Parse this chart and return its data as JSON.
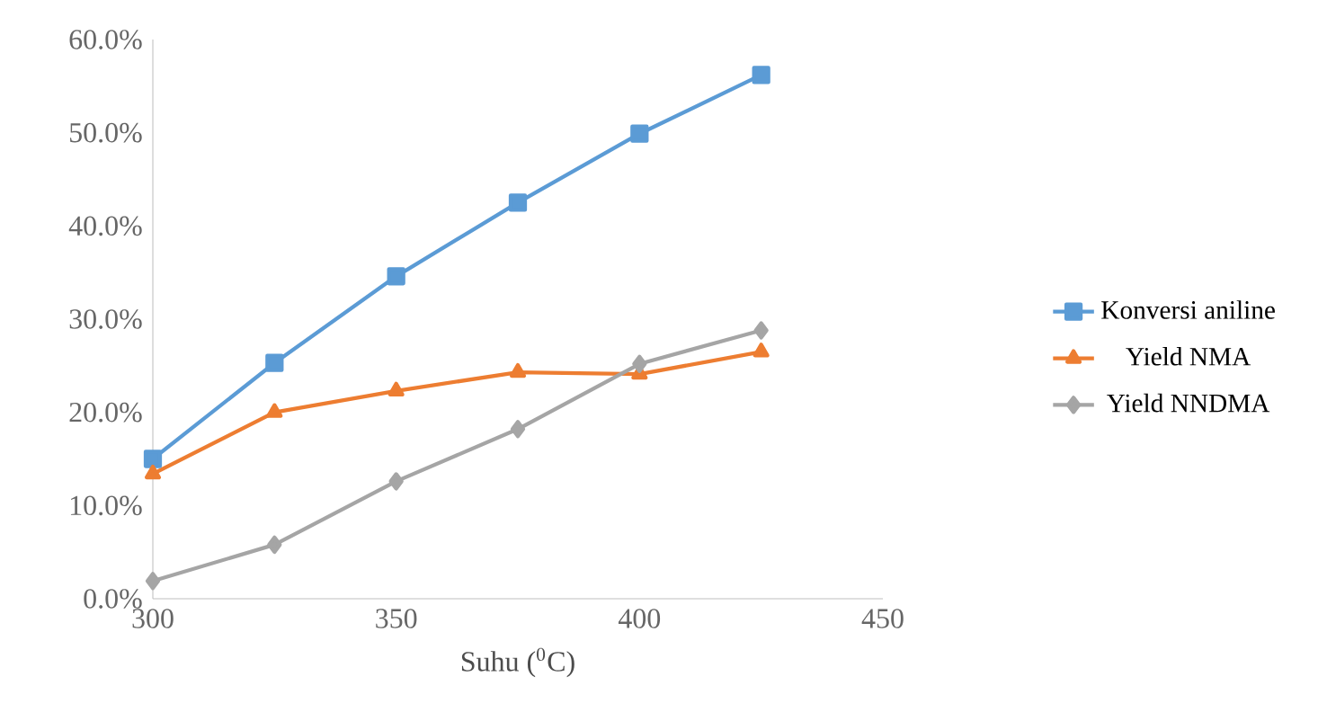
{
  "chart_data": {
    "type": "line",
    "xlabel": "Suhu ($^{0}$C)",
    "x": [
      300,
      325,
      350,
      375,
      400,
      425
    ],
    "series": [
      {
        "name": "Konversi aniline",
        "color": "#5b9bd5",
        "marker": "square",
        "values": [
          15.0,
          25.3,
          34.6,
          42.5,
          49.9,
          56.2
        ]
      },
      {
        "name": "Yield NMA",
        "color": "#ed7d31",
        "marker": "triangle",
        "values": [
          13.4,
          20.0,
          22.3,
          24.3,
          24.1,
          26.5
        ]
      },
      {
        "name": "Yield NNDMA",
        "color": "#a5a5a5",
        "marker": "diamond",
        "values": [
          1.9,
          5.8,
          12.6,
          18.2,
          25.2,
          28.8
        ]
      }
    ],
    "xlim": [
      300,
      450
    ],
    "xticks": [
      300,
      350,
      400,
      450
    ],
    "ylim": [
      0,
      60
    ],
    "yticks": [
      {
        "value": 0,
        "label": "0.0%"
      },
      {
        "value": 10,
        "label": "10.0%"
      },
      {
        "value": 20,
        "label": "20.0%"
      },
      {
        "value": 30,
        "label": "30.0%"
      },
      {
        "value": 40,
        "label": "40.0%"
      },
      {
        "value": 50,
        "label": "50.0%"
      },
      {
        "value": 60,
        "label": "60.0%"
      }
    ],
    "grid": false,
    "legend": "right",
    "line_style": "solid"
  }
}
